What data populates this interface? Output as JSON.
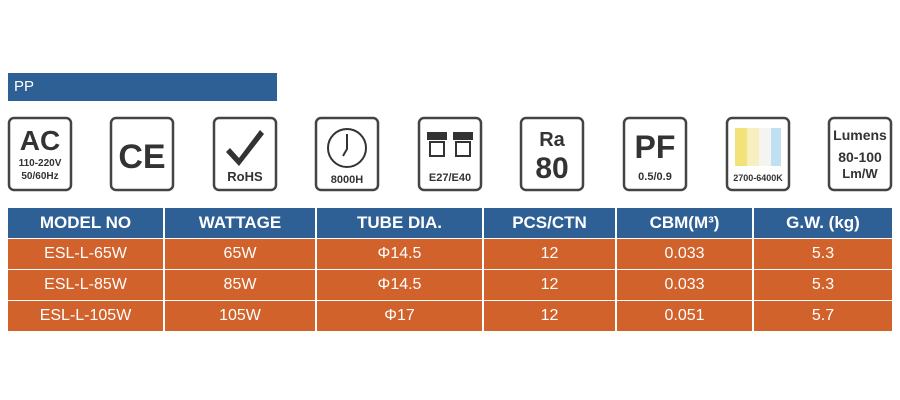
{
  "header": {
    "title": "PP"
  },
  "icons": {
    "ac": {
      "label": "AC",
      "voltage": "110-220V",
      "frequency": "50/60Hz"
    },
    "ce": {
      "label": "CE"
    },
    "rohs": {
      "label": "RoHS"
    },
    "life": {
      "label": "8000H"
    },
    "base": {
      "label": "E27/E40"
    },
    "ra": {
      "label": "Ra",
      "value": "80"
    },
    "pf": {
      "label": "PF",
      "value": "0.5/0.9"
    },
    "cct": {
      "label": "2700-6400K"
    },
    "lumens": {
      "label": "Lumens",
      "value": "80-100",
      "unit": "Lm/W"
    }
  },
  "table": {
    "columns": [
      "MODEL NO",
      "WATTAGE",
      "TUBE DIA.",
      "PCS/CTN",
      "CBM(M³)",
      "G.W. (kg)"
    ],
    "rows": [
      [
        "ESL-L-65W",
        "65W",
        "Φ14.5",
        "12",
        "0.033",
        "5.3"
      ],
      [
        "ESL-L-85W",
        "85W",
        "Φ14.5",
        "12",
        "0.033",
        "5.3"
      ],
      [
        "ESL-L-105W",
        "105W",
        "Φ17",
        "12",
        "0.051",
        "5.7"
      ]
    ]
  }
}
